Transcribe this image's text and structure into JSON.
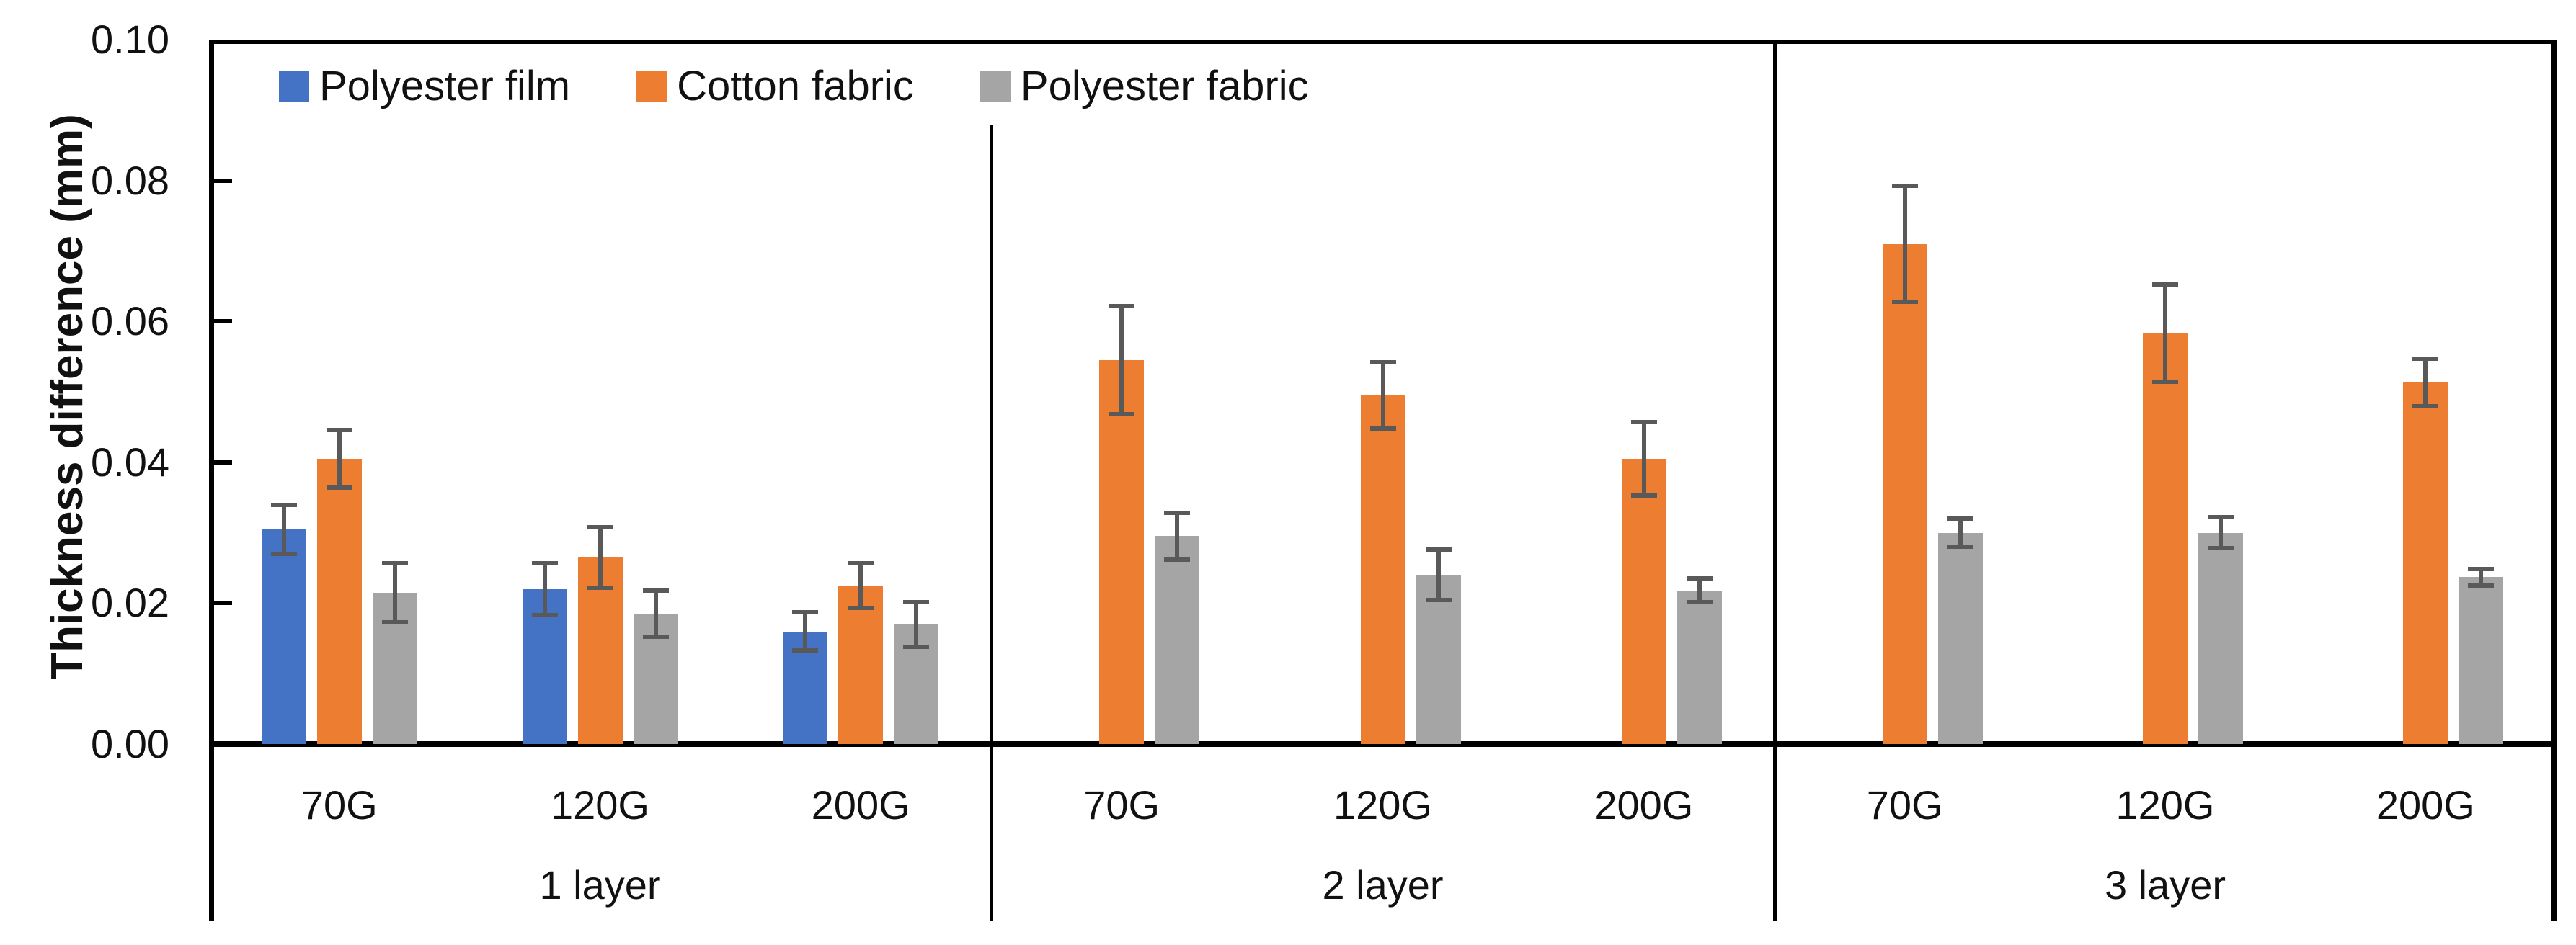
{
  "chart_data": {
    "type": "bar",
    "title": "",
    "ylabel": "Thickness difference (mm)",
    "xlabel": "",
    "ylim": [
      0,
      0.1
    ],
    "ytick_labels": [
      "0.00",
      "0.02",
      "0.04",
      "0.06",
      "0.08",
      "0.10"
    ],
    "yticks": [
      0.0,
      0.02,
      0.04,
      0.06,
      0.08,
      0.1
    ],
    "grid": false,
    "legend_position": "top-left-inside",
    "groups": [
      {
        "label": "1 layer",
        "categories": [
          "70G",
          "120G",
          "200G"
        ]
      },
      {
        "label": "2 layer",
        "categories": [
          "70G",
          "120G",
          "200G"
        ]
      },
      {
        "label": "3 layer",
        "categories": [
          "70G",
          "120G",
          "200G"
        ]
      }
    ],
    "series": [
      {
        "name": "Polyester film",
        "color": "#4472C4",
        "values": [
          [
            0.0305,
            0.022,
            0.016
          ],
          [
            null,
            null,
            null
          ],
          [
            null,
            null,
            null
          ]
        ],
        "errors": [
          [
            0.0038,
            0.004,
            0.003
          ],
          [
            null,
            null,
            null
          ],
          [
            null,
            null,
            null
          ]
        ]
      },
      {
        "name": "Cotton fabric",
        "color": "#ED7D31",
        "values": [
          [
            0.0405,
            0.0265,
            0.0225
          ],
          [
            0.0545,
            0.0495,
            0.0405
          ],
          [
            0.071,
            0.0583,
            0.0513
          ]
        ],
        "errors": [
          [
            0.0044,
            0.0046,
            0.0035
          ],
          [
            0.008,
            0.005,
            0.0055
          ],
          [
            0.0085,
            0.0072,
            0.0037
          ]
        ]
      },
      {
        "name": "Polyester fabric",
        "color": "#A5A5A5",
        "values": [
          [
            0.0215,
            0.0185,
            0.017
          ],
          [
            0.0295,
            0.024,
            0.0218
          ],
          [
            0.03,
            0.03,
            0.0237
          ]
        ],
        "errors": [
          [
            0.0045,
            0.0036,
            0.0035
          ],
          [
            0.0036,
            0.0039,
            0.002
          ],
          [
            0.0023,
            0.0025,
            0.0015
          ]
        ]
      }
    ],
    "error_bar_color": "#595959",
    "axis_color": "#000000"
  }
}
